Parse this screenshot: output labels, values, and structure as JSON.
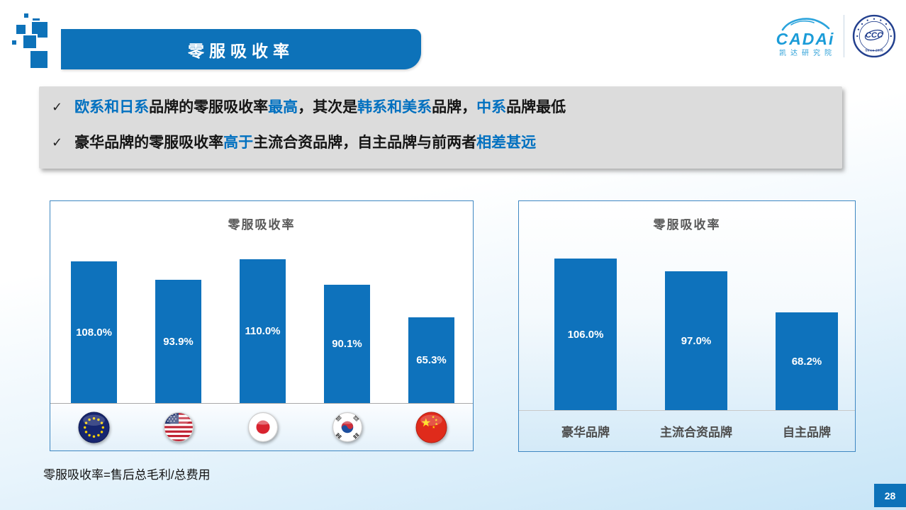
{
  "header": {
    "title": "零服吸收率"
  },
  "logo": {
    "brand": "CADAi",
    "brand_sub": "凯达研究院",
    "badge_center": "CCC",
    "badge_since": "Since 2005"
  },
  "summary": {
    "check_glyph": "✓",
    "bullets": [
      {
        "segments": [
          {
            "text": "欧系和日系",
            "highlight": true
          },
          {
            "text": "品牌的零服吸收率",
            "highlight": false
          },
          {
            "text": "最高",
            "highlight": true
          },
          {
            "text": "，其次是",
            "highlight": false
          },
          {
            "text": "韩系和美系",
            "highlight": true
          },
          {
            "text": "品牌，",
            "highlight": false
          },
          {
            "text": "中系",
            "highlight": true
          },
          {
            "text": "品牌最低",
            "highlight": false
          }
        ]
      },
      {
        "segments": [
          {
            "text": "豪华品牌的零服吸收率",
            "highlight": false
          },
          {
            "text": "高于",
            "highlight": true
          },
          {
            "text": "主流合资品牌，自主品牌与前两者",
            "highlight": false
          },
          {
            "text": "相差甚远",
            "highlight": true
          }
        ]
      }
    ]
  },
  "chart_data": [
    {
      "type": "bar",
      "title": "零服吸收率",
      "categories": [
        "European Union",
        "United States",
        "Japan",
        "South Korea",
        "China"
      ],
      "category_icons": [
        "eu-flag",
        "usa-flag",
        "japan-flag",
        "korea-flag",
        "china-flag"
      ],
      "ids": [
        "eu",
        "usa",
        "japan",
        "korea",
        "china"
      ],
      "values": [
        108.0,
        93.9,
        110.0,
        90.1,
        65.3
      ],
      "data_labels": [
        "108.0%",
        "93.9%",
        "110.0%",
        "90.1%",
        "65.3%"
      ],
      "ylim": [
        0,
        120
      ],
      "grid": false,
      "legend": false,
      "xlabel": "",
      "ylabel": ""
    },
    {
      "type": "bar",
      "title": "零服吸收率",
      "categories": [
        "豪华品牌",
        "主流合资品牌",
        "自主品牌"
      ],
      "ids": [
        "luxury",
        "mainstream-jv",
        "domestic"
      ],
      "values": [
        106.0,
        97.0,
        68.2
      ],
      "data_labels": [
        "106.0%",
        "97.0%",
        "68.2%"
      ],
      "ylim": [
        0,
        115
      ],
      "grid": false,
      "legend": false,
      "xlabel": "",
      "ylabel": ""
    }
  ],
  "footnote": "零服吸收率=售后总毛利/总费用",
  "page_number": "28",
  "colors": {
    "accent_blue": "#0070c0",
    "bar_blue": "#0e72bc",
    "banner_blue": "#0d72b9",
    "page_bg_bottom": "#c7e5f7"
  }
}
